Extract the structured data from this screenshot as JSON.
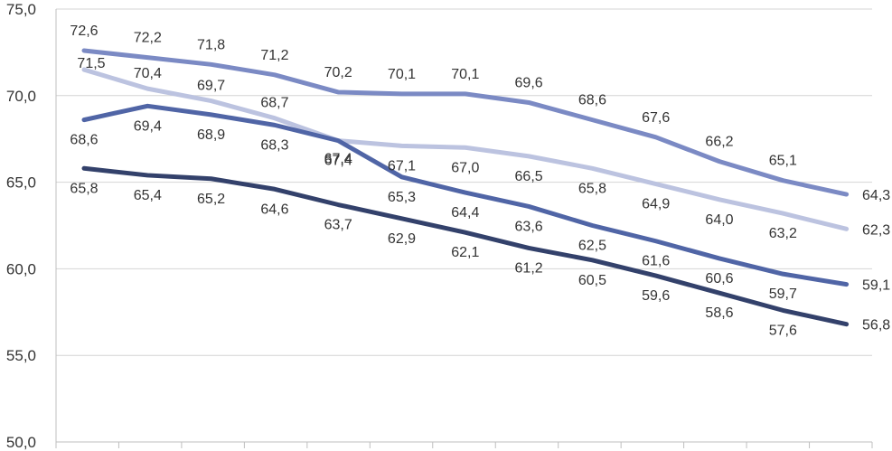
{
  "chart_data": {
    "type": "line",
    "title": "",
    "xlabel": "",
    "ylabel": "",
    "ylim": [
      50,
      75
    ],
    "y_ticks": [
      "50,0",
      "55,0",
      "60,0",
      "65,0",
      "70,0",
      "75,0"
    ],
    "y_tick_values": [
      50,
      55,
      60,
      65,
      70,
      75
    ],
    "grid": "horizontal",
    "legend": "none",
    "point_count": 13,
    "series": [
      {
        "color": "#7b8ac4",
        "values": [
          72.6,
          72.2,
          71.8,
          71.2,
          70.2,
          70.1,
          70.1,
          69.6,
          68.6,
          67.6,
          66.2,
          65.1,
          64.3
        ],
        "labels": [
          "72,6",
          "72,2",
          "71,8",
          "71,2",
          "70,2",
          "70,1",
          "70,1",
          "69,6",
          "68,6",
          "67,6",
          "66,2",
          "65,1",
          "64,3"
        ]
      },
      {
        "color": "#bcc3e0",
        "values": [
          71.5,
          70.4,
          69.7,
          68.7,
          67.4,
          67.1,
          67.0,
          66.5,
          65.8,
          64.9,
          64.0,
          63.2,
          62.3
        ],
        "labels": [
          "71,5",
          "70,4",
          "69,7",
          "68,7",
          "67,4",
          "67,1",
          "67,0",
          "66,5",
          "65,8",
          "64,9",
          "64,0",
          "63,2",
          "62,3"
        ]
      },
      {
        "color": "#5065a6",
        "values": [
          68.6,
          69.4,
          68.9,
          68.3,
          67.4,
          65.3,
          64.4,
          63.6,
          62.5,
          61.6,
          60.6,
          59.7,
          59.1
        ],
        "labels": [
          "68,6",
          "69,4",
          "68,9",
          "68,3",
          "67,4",
          "65,3",
          "64,4",
          "63,6",
          "62,5",
          "61,6",
          "60,6",
          "59,7",
          "59,1"
        ]
      },
      {
        "color": "#33416b",
        "values": [
          65.8,
          65.4,
          65.2,
          64.6,
          63.7,
          62.9,
          62.1,
          61.2,
          60.5,
          59.6,
          58.6,
          57.6,
          56.8
        ],
        "labels": [
          "65,8",
          "65,4",
          "65,2",
          "64,6",
          "63,7",
          "62,9",
          "62,1",
          "61,2",
          "60,5",
          "59,6",
          "58,6",
          "57,6",
          "56,8"
        ]
      }
    ]
  }
}
